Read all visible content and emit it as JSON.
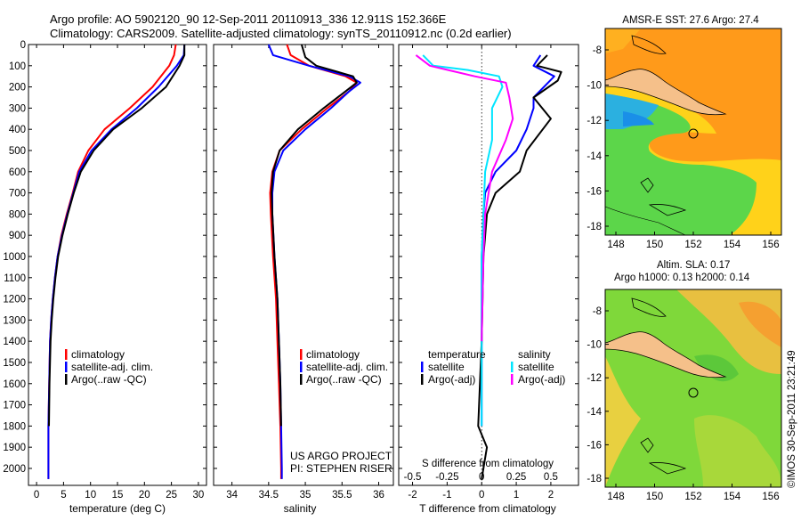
{
  "header": {
    "line1": "Argo profile: AO 5902120_90 12-Sep-2011 20110913_336 12.911S 152.366E",
    "line2": "Climatology: CARS2009. Satellite-adjusted climatology: synTS_20110912.nc (0.2d earlier)"
  },
  "colors": {
    "climatology": "#ff0000",
    "satellite": "#0000ff",
    "argo": "#000000",
    "sat_salinity": "#00e5ff",
    "argo_salinity": "#ff00ff",
    "land": "#f5c08a"
  },
  "legend_temp": [
    "climatology",
    "satellite-adj. clim.",
    "Argo(..raw -QC)"
  ],
  "legend_sal": [
    "climatology",
    "satellite-adj. clim.",
    "Argo(..raw -QC)"
  ],
  "legend_diff": {
    "col1_title": "temperature",
    "col2_title": "salinity",
    "items": [
      "satellite",
      "Argo(-adj)",
      "satellite",
      "Argo(-adj)"
    ]
  },
  "credits": [
    "US ARGO PROJECT",
    "PI: STEPHEN RISER"
  ],
  "map_top": {
    "title": "AMSR-E SST: 27.6 Argo: 27.4"
  },
  "map_bottom": {
    "title1": "Altim. SLA: 0.17",
    "title2": "Argo h1000: 0.13 h2000: 0.14"
  },
  "map_axes": {
    "lon_ticks": [
      "148",
      "150",
      "152",
      "154",
      "156"
    ],
    "lat_ticks": [
      "-8",
      "-10",
      "-12",
      "-14",
      "-16",
      "-18"
    ]
  },
  "stamp": "©IMOS 30-Sep-2011 23:21:49",
  "chart_data": [
    {
      "type": "line",
      "title": "",
      "xlabel": "temperature (deg C)",
      "ylabel": "",
      "xlim": [
        -1.5,
        31.5
      ],
      "ylim": [
        2080,
        0
      ],
      "x_ticks": [
        0,
        5,
        10,
        15,
        20,
        25,
        30
      ],
      "y_ticks": [
        0,
        100,
        200,
        300,
        400,
        500,
        600,
        700,
        800,
        900,
        1000,
        1100,
        1200,
        1300,
        1400,
        1500,
        1600,
        1700,
        1800,
        1900,
        2000
      ],
      "series": [
        {
          "name": "climatology",
          "color": "#ff0000",
          "x": [
            25.8,
            25.5,
            24.6,
            21.5,
            17.3,
            12.6,
            9.6,
            7.7,
            6.7,
            5.6,
            4.6,
            3.9,
            3.4,
            3.0,
            2.7,
            2.5,
            2.35,
            2.2,
            2.2
          ],
          "y": [
            0,
            50,
            100,
            200,
            300,
            400,
            500,
            600,
            700,
            800,
            900,
            1000,
            1100,
            1200,
            1300,
            1400,
            1600,
            1800,
            2050
          ]
        },
        {
          "name": "satellite-adj. clim.",
          "color": "#0000ff",
          "x": [
            27.4,
            27.3,
            26.0,
            22.6,
            18.6,
            13.9,
            10.2,
            7.9,
            6.8,
            5.7,
            4.7,
            3.9,
            3.4,
            3.0,
            2.7,
            2.5,
            2.35,
            2.2,
            2.2
          ],
          "y": [
            0,
            50,
            100,
            200,
            300,
            400,
            500,
            600,
            700,
            800,
            900,
            1000,
            1100,
            1200,
            1300,
            1400,
            1600,
            1800,
            2050
          ]
        },
        {
          "name": "Argo(..raw -QC)",
          "color": "#000000",
          "x": [
            27.4,
            27.4,
            26.5,
            24.0,
            19.5,
            14.2,
            10.6,
            8.2,
            6.9,
            5.8,
            4.8,
            4.0,
            3.5,
            3.1,
            2.8,
            2.6,
            2.4,
            2.3
          ],
          "y": [
            0,
            50,
            100,
            200,
            300,
            400,
            500,
            600,
            700,
            800,
            900,
            1000,
            1100,
            1200,
            1300,
            1400,
            1600,
            1800
          ]
        }
      ]
    },
    {
      "type": "line",
      "title": "",
      "xlabel": "salinity",
      "ylabel": "",
      "xlim": [
        33.75,
        36.2
      ],
      "ylim": [
        2080,
        0
      ],
      "x_ticks": [
        34,
        34.5,
        35,
        35.5,
        36
      ],
      "y_ticks": [
        0,
        100,
        200,
        300,
        400,
        500,
        600,
        700,
        800,
        900,
        1000,
        1100,
        1200,
        1300,
        1400,
        1500,
        1600,
        1700,
        1800,
        1900,
        2000
      ],
      "series": [
        {
          "name": "climatology",
          "color": "#ff0000",
          "x": [
            34.75,
            34.8,
            35.05,
            35.55,
            35.7,
            35.6,
            35.3,
            34.95,
            34.65,
            34.55,
            34.52,
            34.53,
            34.56,
            34.6,
            34.62,
            34.64,
            34.66,
            34.67,
            34.67
          ],
          "y": [
            0,
            50,
            100,
            150,
            180,
            220,
            300,
            400,
            500,
            600,
            700,
            800,
            1000,
            1200,
            1400,
            1600,
            1800,
            2000,
            2050
          ]
        },
        {
          "name": "satellite-adj. clim.",
          "color": "#0000ff",
          "x": [
            34.5,
            34.56,
            35.05,
            35.6,
            35.75,
            35.6,
            35.35,
            35.0,
            34.7,
            34.58,
            34.55,
            34.55,
            34.58,
            34.62,
            34.64,
            34.66,
            34.67,
            34.68,
            34.68
          ],
          "y": [
            0,
            50,
            100,
            150,
            180,
            220,
            300,
            400,
            500,
            600,
            700,
            800,
            1000,
            1200,
            1400,
            1600,
            1800,
            2000,
            2050
          ]
        },
        {
          "name": "Argo(..raw -QC)",
          "color": "#000000",
          "x": [
            34.95,
            35.0,
            35.15,
            35.65,
            35.7,
            35.55,
            35.25,
            34.9,
            34.65,
            34.56,
            34.54,
            34.55,
            34.58,
            34.62,
            34.64,
            34.66,
            34.67
          ],
          "y": [
            0,
            60,
            100,
            150,
            180,
            220,
            300,
            400,
            500,
            600,
            700,
            800,
            1000,
            1200,
            1400,
            1600,
            1800
          ]
        }
      ]
    },
    {
      "type": "line",
      "title": "",
      "xlabel": "T difference from climatology",
      "xlabel2": "S difference from climatology",
      "xlim": [
        -2.4,
        2.8
      ],
      "ylim": [
        2080,
        0
      ],
      "x_ticks": [
        -2,
        -1,
        0,
        1,
        2
      ],
      "x_ticks_top": [
        "-0.5",
        "-0.25",
        "0",
        "0.25",
        "0.5"
      ],
      "x_ticks_top_pos": [
        -2,
        -1,
        0,
        1,
        2
      ],
      "y_ticks": [
        0,
        100,
        200,
        300,
        400,
        500,
        600,
        700,
        800,
        900,
        1000,
        1100,
        1200,
        1300,
        1400,
        1500,
        1600,
        1700,
        1800,
        1900,
        2000
      ],
      "series": [
        {
          "name": "temperature satellite",
          "color": "#0000ff",
          "x": [
            1.7,
            1.5,
            2.1,
            1.5,
            1.5,
            1.3,
            1.0,
            0.4,
            0.1,
            0.05,
            0.0,
            0.0,
            0.0
          ],
          "y": [
            50,
            100,
            150,
            250,
            300,
            400,
            500,
            600,
            700,
            800,
            1000,
            1400,
            1800
          ]
        },
        {
          "name": "temperature Argo(-adj)",
          "color": "#000000",
          "x": [
            1.9,
            1.6,
            2.3,
            2.2,
            1.5,
            2.0,
            1.3,
            1.1,
            0.4,
            0.15,
            0.05,
            0.0,
            -0.1,
            0.15,
            0.0
          ],
          "y": [
            50,
            100,
            130,
            170,
            250,
            350,
            500,
            600,
            700,
            800,
            1000,
            1400,
            1800,
            1900,
            2050
          ]
        },
        {
          "name": "salinity satellite",
          "color": "#00e5ff",
          "x": [
            -1.7,
            -1.4,
            -0.4,
            0.5,
            0.6,
            0.3,
            0.3,
            0.1,
            0.05,
            0.0,
            0.0,
            0.0
          ],
          "y": [
            50,
            100,
            120,
            150,
            200,
            300,
            450,
            600,
            800,
            1000,
            1400,
            1800
          ]
        },
        {
          "name": "salinity Argo(-adj)",
          "color": "#ff00ff",
          "x": [
            -1.9,
            -1.5,
            -0.2,
            0.7,
            0.8,
            0.9,
            0.7,
            0.3,
            0.1,
            0.05,
            0.0
          ],
          "y": [
            50,
            100,
            150,
            180,
            250,
            350,
            450,
            600,
            800,
            1000,
            1400
          ]
        }
      ]
    }
  ]
}
